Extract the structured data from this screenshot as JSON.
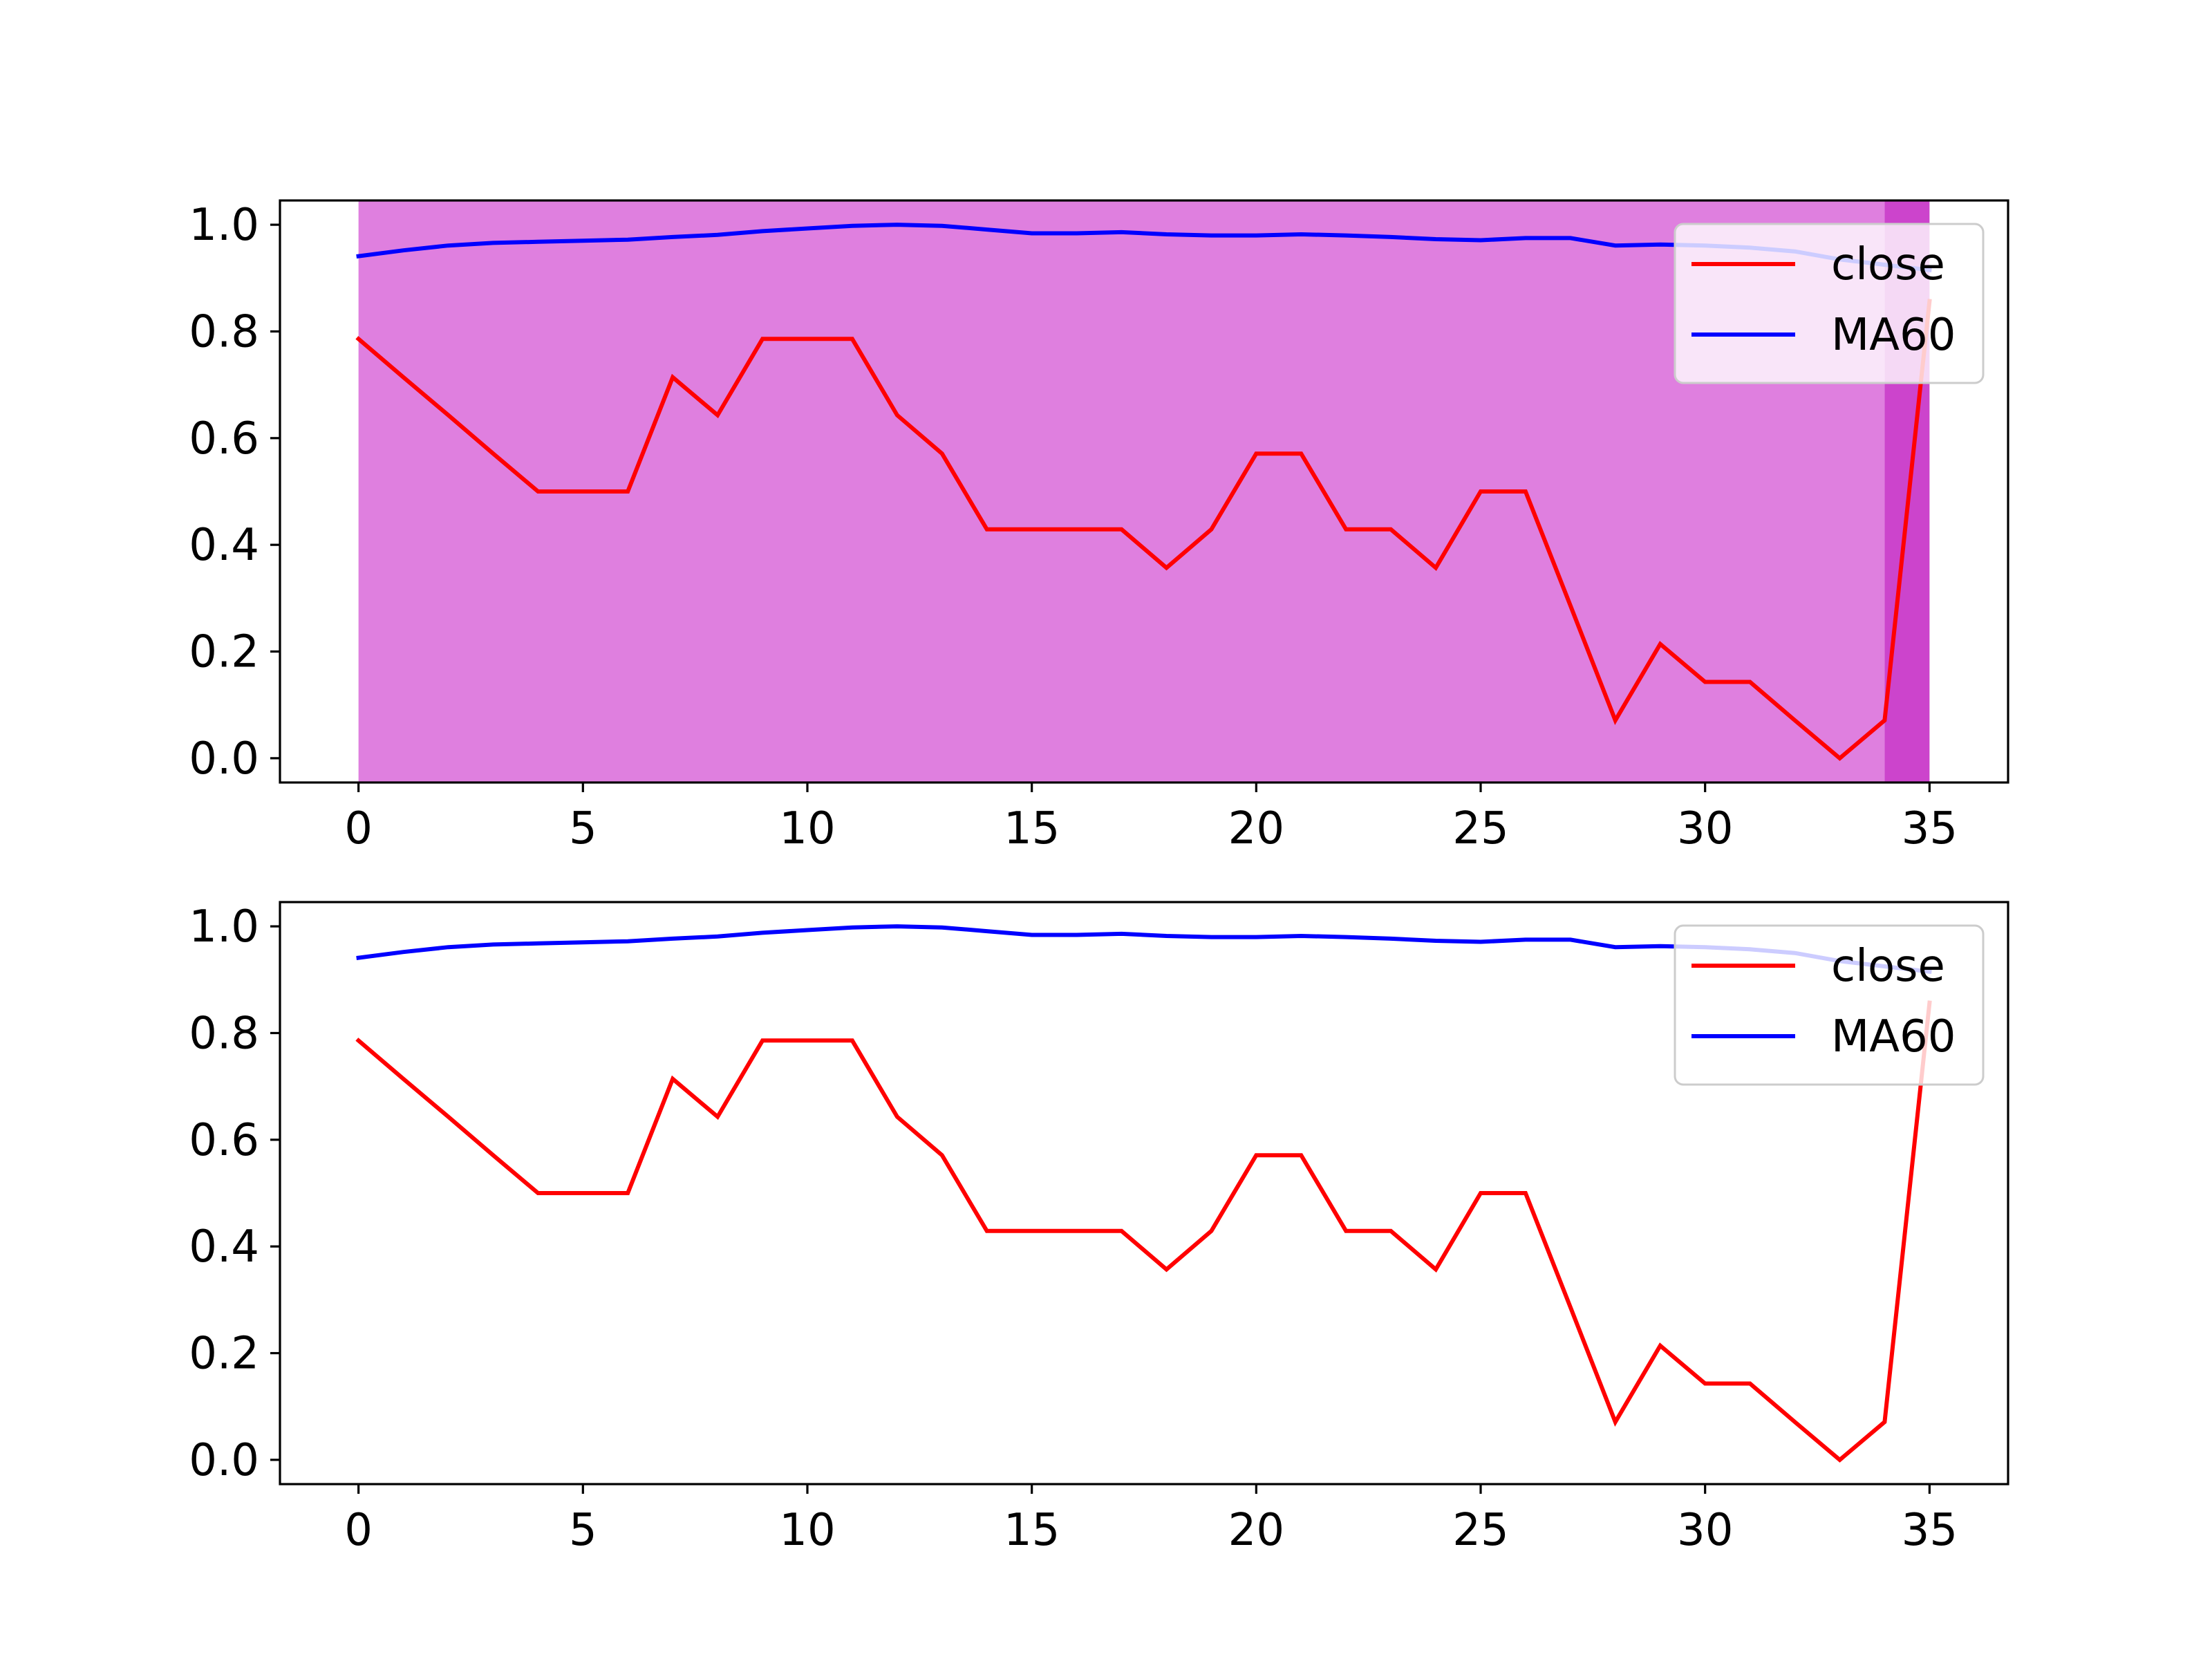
{
  "chart_data": [
    {
      "type": "line",
      "title": "",
      "xlabel": "",
      "ylabel": "",
      "xlim": [
        -1.75,
        36.75
      ],
      "ylim": [
        -0.0455,
        1.0455
      ],
      "x_ticks": [
        "0",
        "5",
        "10",
        "15",
        "20",
        "25",
        "30",
        "35"
      ],
      "y_ticks": [
        "0.0",
        "0.2",
        "0.4",
        "0.6",
        "0.8",
        "1.0"
      ],
      "grid": false,
      "legend_position": "upper-right",
      "shaded_regions": [
        {
          "x_start": 0,
          "x_end": 34,
          "color": "#df7fdf"
        },
        {
          "x_start": 34,
          "x_end": 35,
          "color": "#cc44cc"
        }
      ],
      "x": [
        0,
        1,
        2,
        3,
        4,
        5,
        6,
        7,
        8,
        9,
        10,
        11,
        12,
        13,
        14,
        15,
        16,
        17,
        18,
        19,
        20,
        21,
        22,
        23,
        24,
        25,
        26,
        27,
        28,
        29,
        30,
        31,
        32,
        33,
        34,
        35
      ],
      "series": [
        {
          "name": "close",
          "color": "#ff0000",
          "values": [
            0.786,
            0.714,
            0.643,
            0.571,
            0.5,
            0.5,
            0.5,
            0.714,
            0.643,
            0.786,
            0.786,
            0.786,
            0.643,
            0.571,
            0.429,
            0.429,
            0.429,
            0.429,
            0.357,
            0.429,
            0.571,
            0.571,
            0.429,
            0.429,
            0.357,
            0.5,
            0.5,
            0.286,
            0.071,
            0.214,
            0.143,
            0.143,
            0.071,
            0.0,
            0.071,
            0.857
          ]
        },
        {
          "name": "MA60",
          "color": "#0000ff",
          "values": [
            0.941,
            0.952,
            0.961,
            0.966,
            0.968,
            0.97,
            0.972,
            0.977,
            0.981,
            0.988,
            0.993,
            0.998,
            1.0,
            0.998,
            0.991,
            0.984,
            0.984,
            0.986,
            0.982,
            0.98,
            0.98,
            0.982,
            0.98,
            0.977,
            0.973,
            0.971,
            0.975,
            0.975,
            0.961,
            0.963,
            0.961,
            0.957,
            0.95,
            0.935,
            0.925,
            0.915
          ]
        }
      ]
    },
    {
      "type": "line",
      "title": "",
      "xlabel": "",
      "ylabel": "",
      "xlim": [
        -1.75,
        36.75
      ],
      "ylim": [
        -0.0455,
        1.0455
      ],
      "x_ticks": [
        "0",
        "5",
        "10",
        "15",
        "20",
        "25",
        "30",
        "35"
      ],
      "y_ticks": [
        "0.0",
        "0.2",
        "0.4",
        "0.6",
        "0.8",
        "1.0"
      ],
      "grid": false,
      "legend_position": "upper-right",
      "shaded_regions": [],
      "x": [
        0,
        1,
        2,
        3,
        4,
        5,
        6,
        7,
        8,
        9,
        10,
        11,
        12,
        13,
        14,
        15,
        16,
        17,
        18,
        19,
        20,
        21,
        22,
        23,
        24,
        25,
        26,
        27,
        28,
        29,
        30,
        31,
        32,
        33,
        34,
        35
      ],
      "series": [
        {
          "name": "close",
          "color": "#ff0000",
          "values": [
            0.786,
            0.714,
            0.643,
            0.571,
            0.5,
            0.5,
            0.5,
            0.714,
            0.643,
            0.786,
            0.786,
            0.786,
            0.643,
            0.571,
            0.429,
            0.429,
            0.429,
            0.429,
            0.357,
            0.429,
            0.571,
            0.571,
            0.429,
            0.429,
            0.357,
            0.5,
            0.5,
            0.286,
            0.071,
            0.214,
            0.143,
            0.143,
            0.071,
            0.0,
            0.071,
            0.857
          ]
        },
        {
          "name": "MA60",
          "color": "#0000ff",
          "values": [
            0.941,
            0.952,
            0.961,
            0.966,
            0.968,
            0.97,
            0.972,
            0.977,
            0.981,
            0.988,
            0.993,
            0.998,
            1.0,
            0.998,
            0.991,
            0.984,
            0.984,
            0.986,
            0.982,
            0.98,
            0.98,
            0.982,
            0.98,
            0.977,
            0.973,
            0.971,
            0.975,
            0.975,
            0.961,
            0.963,
            0.961,
            0.957,
            0.95,
            0.935,
            0.925,
            0.915
          ]
        }
      ]
    }
  ]
}
